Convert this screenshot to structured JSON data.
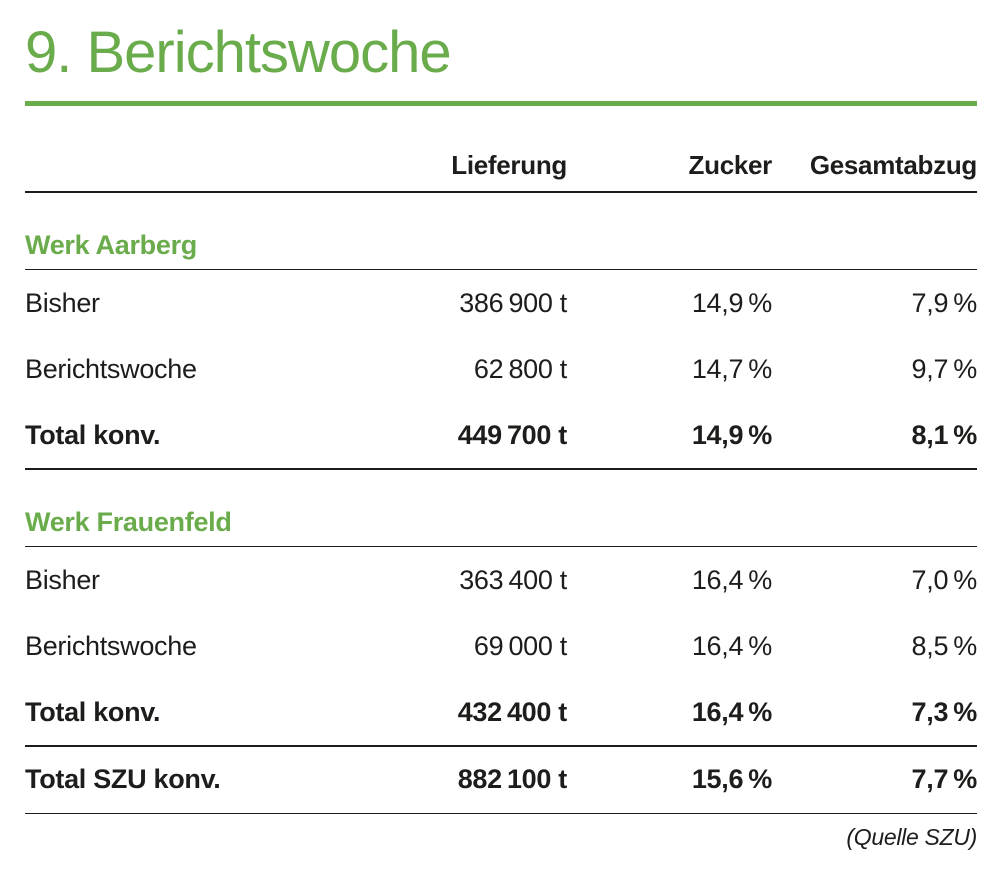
{
  "title": "9. Berichtswoche",
  "colors": {
    "green": "#6aac4b",
    "text": "#1d1d1b"
  },
  "table": {
    "columns": {
      "label": "",
      "lieferung": "Lieferung",
      "zucker": "Zucker",
      "gesamtabzug": "Gesamtabzug"
    },
    "sections": [
      {
        "heading": "Werk Aarberg",
        "rows": [
          {
            "label": "Bisher",
            "lieferung": "386 900 t",
            "zucker": "14,9 %",
            "gesamtabzug": "7,9 %"
          },
          {
            "label": "Berichtswoche",
            "lieferung": "62 800 t",
            "zucker": "14,7 %",
            "gesamtabzug": "9,7 %"
          },
          {
            "label": "Total konv.",
            "lieferung": "449 700 t",
            "zucker": "14,9 %",
            "gesamtabzug": "8,1 %"
          }
        ]
      },
      {
        "heading": "Werk Frauenfeld",
        "rows": [
          {
            "label": "Bisher",
            "lieferung": "363 400 t",
            "zucker": "16,4 %",
            "gesamtabzug": "7,0 %"
          },
          {
            "label": "Berichtswoche",
            "lieferung": "69 000 t",
            "zucker": "16,4 %",
            "gesamtabzug": "8,5 %"
          },
          {
            "label": "Total konv.",
            "lieferung": "432 400 t",
            "zucker": "16,4 %",
            "gesamtabzug": "7,3 %"
          }
        ]
      }
    ],
    "summary": {
      "label": "Total SZU konv.",
      "lieferung": "882 100 t",
      "zucker": "15,6 %",
      "gesamtabzug": "7,7 %"
    }
  },
  "source": "(Quelle SZU)"
}
